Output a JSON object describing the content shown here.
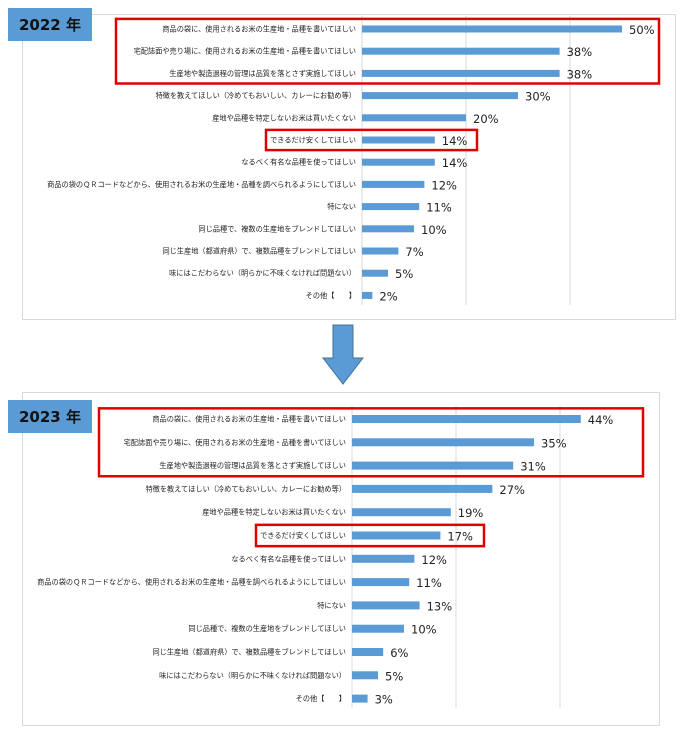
{
  "chart_data": [
    {
      "type": "bar",
      "orientation": "horizontal",
      "year_label": "2022 年",
      "xlim": [
        0,
        50
      ],
      "grid": true,
      "categories": [
        "商品の袋に、使用されるお米の生産地・品種を書いてほしい",
        "宅配誌面や売り場に、使用されるお米の生産地・品種を書いてほしい",
        "生産地や製造過程の管理は品質を落とさず実施してほしい",
        "特徴を教えてほしい（冷めてもおいしい、カレーにお勧め等）",
        "産地や品種を特定しないお米は買いたくない",
        "できるだけ安くしてほしい",
        "なるべく有名な品種を使ってほしい",
        "商品の袋のＱＲコードなどから、使用されるお米の生産地・品種を調べられるようにしてほしい",
        "特にない",
        "同じ品種で、複数の生産地をブレンドしてほしい",
        "同じ生産地（都道府県）で、複数品種をブレンドしてほしい",
        "味にはこだわらない（明らかに不味くなければ問題ない）",
        "その他【　　】"
      ],
      "values": [
        50,
        38,
        38,
        30,
        20,
        14,
        14,
        12,
        11,
        10,
        7,
        5,
        2
      ],
      "value_labels": [
        "50%",
        "38%",
        "38%",
        "30%",
        "20%",
        "14%",
        "14%",
        "12%",
        "11%",
        "10%",
        "7%",
        "5%",
        "2%"
      ],
      "highlighted": [
        [
          0,
          2
        ],
        [
          5,
          5
        ]
      ]
    },
    {
      "type": "bar",
      "orientation": "horizontal",
      "year_label": "2023 年",
      "xlim": [
        0,
        50
      ],
      "grid": true,
      "categories": [
        "商品の袋に、使用されるお米の生産地・品種を書いてほしい",
        "宅配誌面や売り場に、使用されるお米の生産地・品種を書いてほしい",
        "生産地や製造過程の管理は品質を落とさず実施してほしい",
        "特徴を教えてほしい（冷めてもおいしい、カレーにお勧め等）",
        "産地や品種を特定しないお米は買いたくない",
        "できるだけ安くしてほしい",
        "なるべく有名な品種を使ってほしい",
        "商品の袋のＱＲコードなどから、使用されるお米の生産地・品種を調べられるようにしてほしい",
        "特にない",
        "同じ品種で、複数の生産地をブレンドしてほしい",
        "同じ生産地（都道府県）で、複数品種をブレンドしてほしい",
        "味にはこだわらない（明らかに不味くなければ問題ない）",
        "その他【　　】"
      ],
      "values": [
        44,
        35,
        31,
        27,
        19,
        17,
        12,
        11,
        13,
        10,
        6,
        5,
        3
      ],
      "value_labels": [
        "44%",
        "35%",
        "31%",
        "27%",
        "19%",
        "17%",
        "12%",
        "11%",
        "13%",
        "10%",
        "6%",
        "5%",
        "3%"
      ],
      "highlighted": [
        [
          0,
          2
        ],
        [
          5,
          5
        ]
      ]
    }
  ],
  "colors": {
    "bar": "#5b9bd5",
    "year_tag": "#5b9bd5",
    "highlight": "#e00000",
    "arrow": "#5b9bd5"
  },
  "arrow_icon": "down-arrow-icon"
}
